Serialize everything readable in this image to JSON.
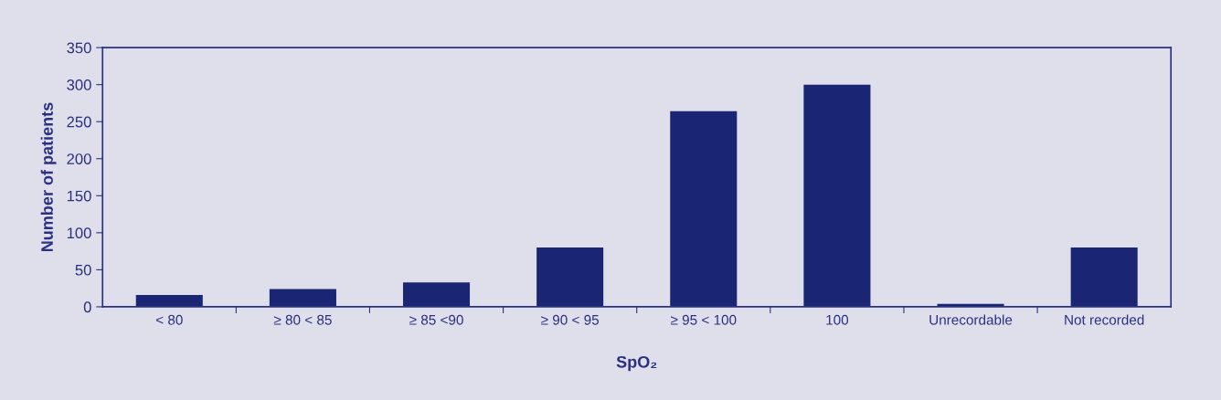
{
  "chart_data": {
    "type": "bar",
    "xlabel": "SpO₂",
    "ylabel": "Number of patients",
    "categories": [
      "< 80",
      "≥ 80 < 85",
      "≥ 85 <90",
      "≥ 90 < 95",
      "≥ 95 < 100",
      "100",
      "Unrecordable",
      "Not recorded"
    ],
    "values": [
      16,
      24,
      33,
      80,
      264,
      300,
      4,
      80
    ],
    "color": "#1a2674",
    "ylim": [
      0,
      350
    ],
    "yticks": [
      0,
      50,
      100,
      150,
      200,
      250,
      300,
      350
    ],
    "grid": false,
    "legend": false
  }
}
